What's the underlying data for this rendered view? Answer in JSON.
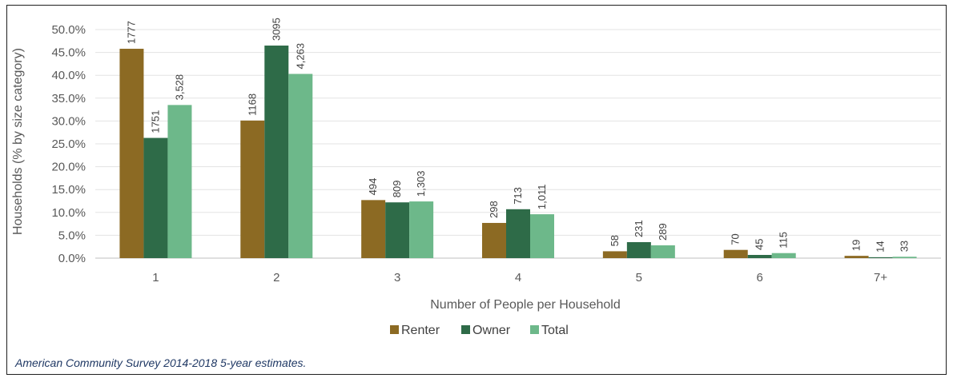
{
  "chart_data": {
    "type": "bar",
    "xlabel": "Number of People per Household",
    "ylabel": "Households (% by size category)",
    "categories": [
      "1",
      "2",
      "3",
      "4",
      "5",
      "6",
      "7+"
    ],
    "ylim": [
      0,
      50
    ],
    "yticks": [
      "0.0%",
      "5.0%",
      "10.0%",
      "15.0%",
      "20.0%",
      "25.0%",
      "30.0%",
      "35.0%",
      "40.0%",
      "45.0%",
      "50.0%"
    ],
    "grid": true,
    "legend_position": "bottom",
    "series": [
      {
        "name": "Renter",
        "color": "#8c6a23",
        "values": [
          45.8,
          30.1,
          12.7,
          7.7,
          1.5,
          1.8,
          0.5
        ],
        "labels": [
          "1777",
          "1168",
          "494",
          "298",
          "58",
          "70",
          "19"
        ]
      },
      {
        "name": "Owner",
        "color": "#2e6b48",
        "values": [
          26.3,
          46.5,
          12.2,
          10.7,
          3.5,
          0.7,
          0.2
        ],
        "labels": [
          "1751",
          "3095",
          "809",
          "713",
          "231",
          "45",
          "14"
        ]
      },
      {
        "name": "Total",
        "color": "#6db88a",
        "values": [
          33.5,
          40.3,
          12.4,
          9.6,
          2.8,
          1.1,
          0.3
        ],
        "labels": [
          "3,528",
          "4,263",
          "1,303",
          "1,011",
          "289",
          "115",
          "33"
        ]
      }
    ]
  },
  "source_note": "American Community Survey 2014-2018 5-year estimates."
}
